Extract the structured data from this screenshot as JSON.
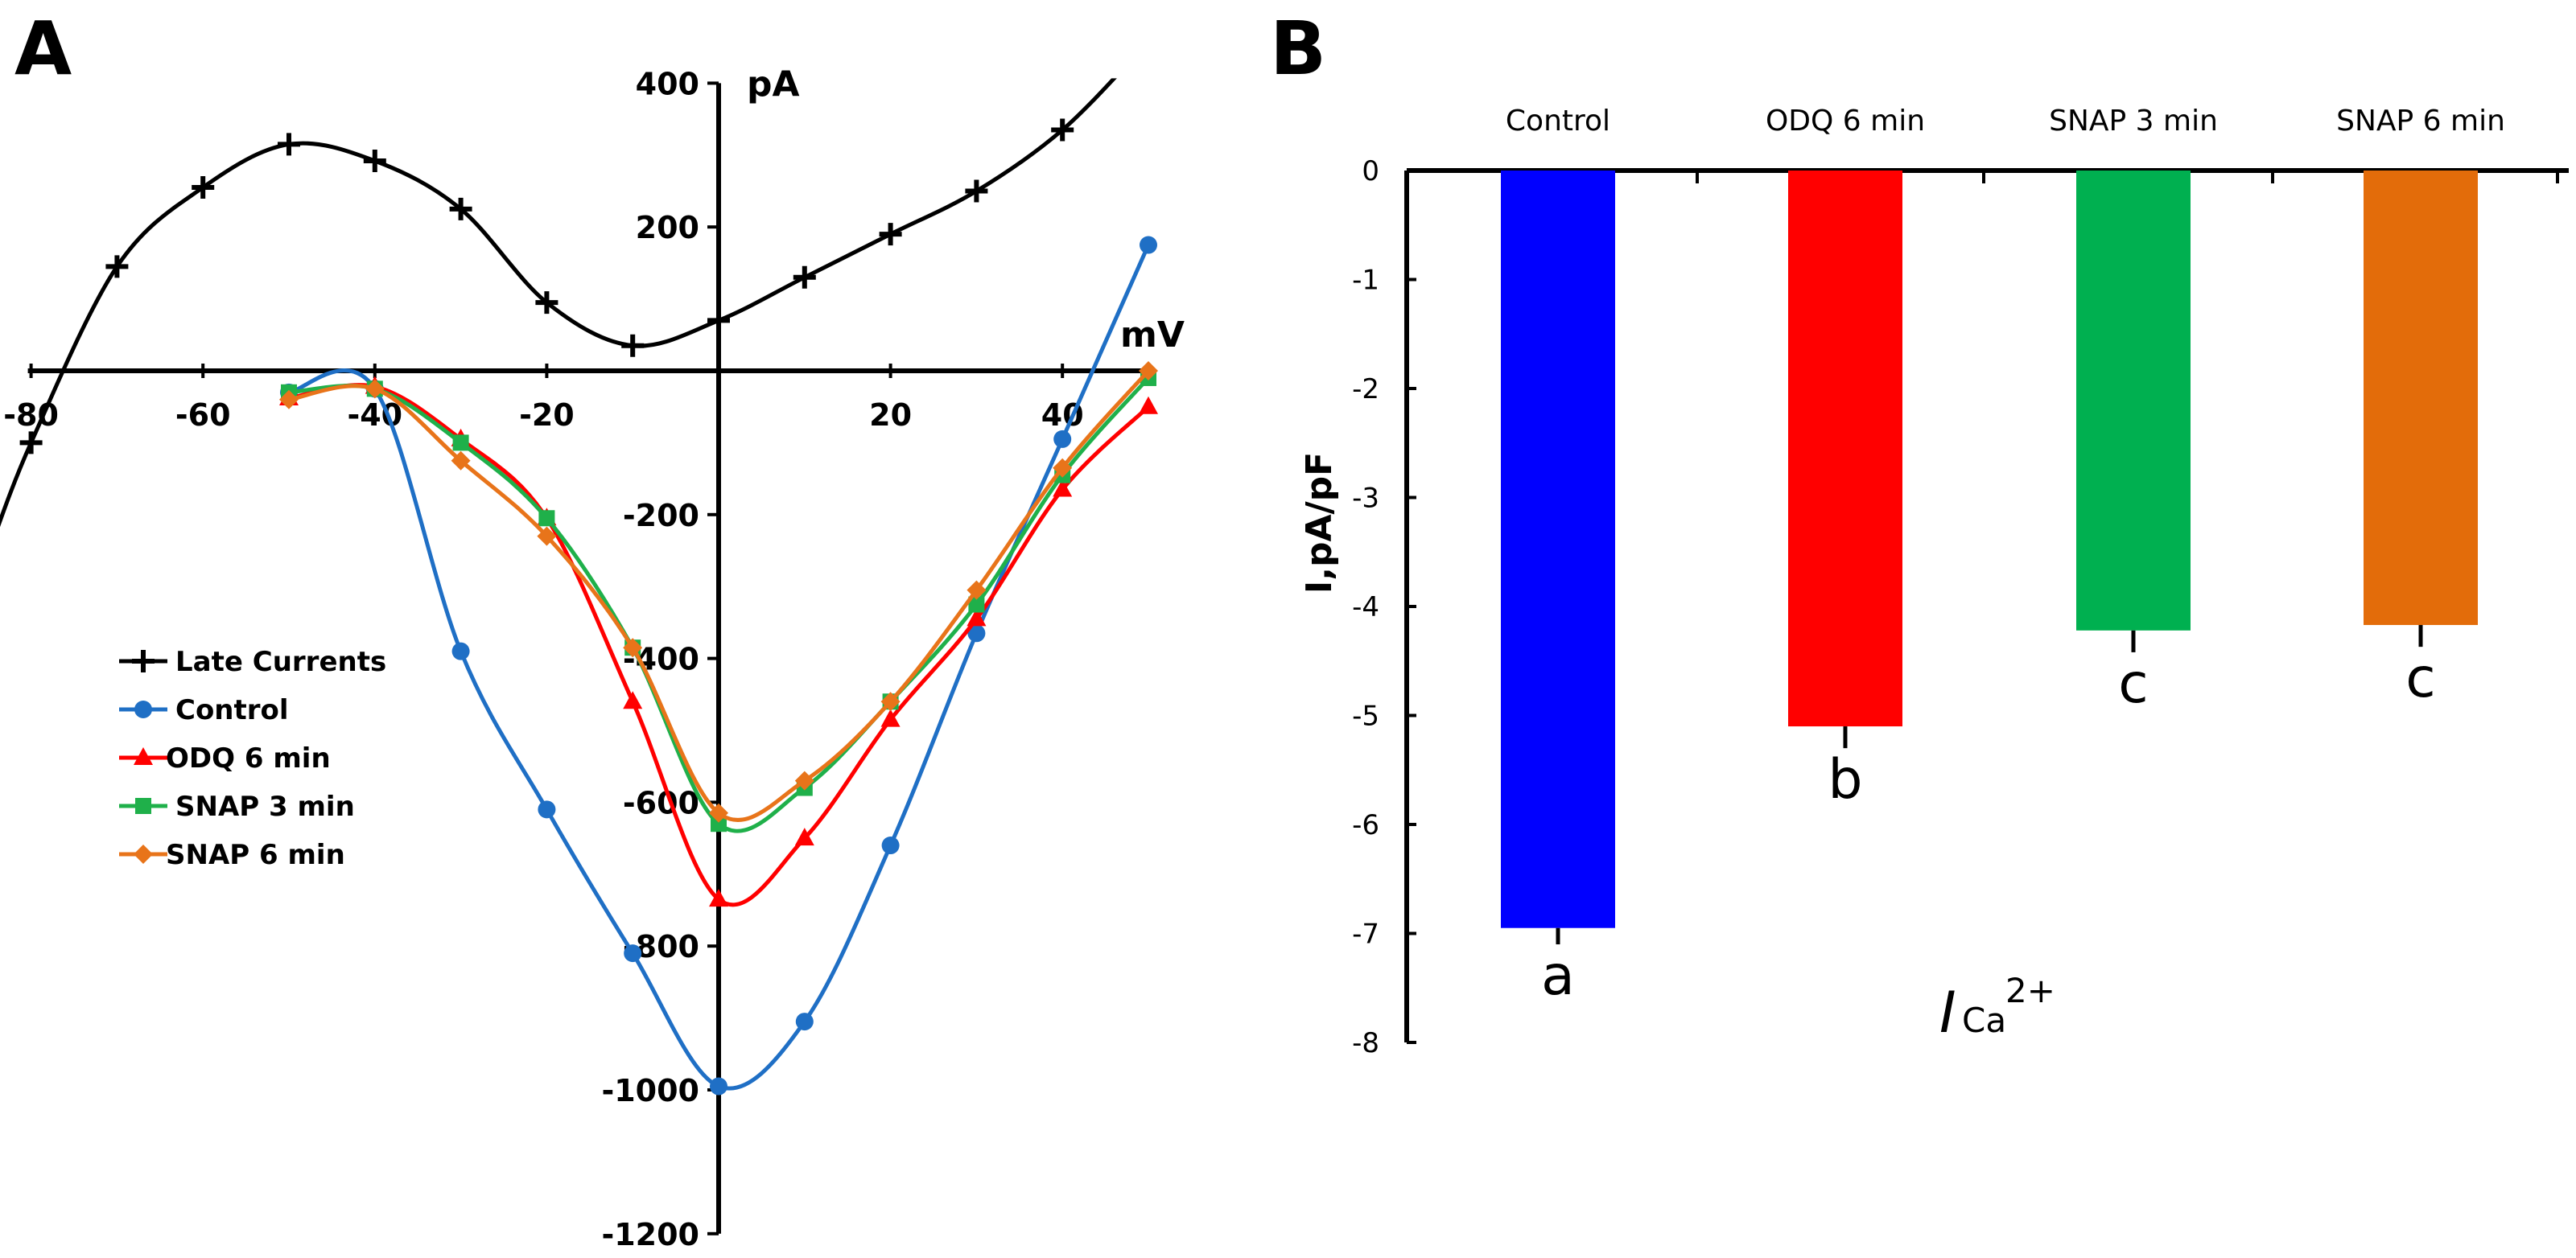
{
  "panels": {
    "a_label": "A",
    "b_label": "B"
  },
  "chart_data": [
    {
      "type": "line",
      "panel": "A",
      "xlabel": "mV",
      "ylabel": "pA",
      "xlim": [
        -80,
        50
      ],
      "ylim": [
        -1200,
        400
      ],
      "x_ticks": [
        -80,
        -60,
        -40,
        -20,
        20,
        40
      ],
      "y_ticks": [
        400,
        200,
        -200,
        -400,
        -600,
        -800,
        -1000,
        -1200
      ],
      "legend_position": "middle-left",
      "series": [
        {
          "name": "Late Currents",
          "color": "#000000",
          "marker": "plus",
          "x": [
            -80,
            -70,
            -60,
            -50,
            -40,
            -30,
            -20,
            -10,
            0,
            10,
            20,
            30,
            40
          ],
          "y": [
            -100,
            145,
            255,
            315,
            292,
            225,
            95,
            35,
            70,
            130,
            190,
            250,
            335
          ]
        },
        {
          "name": "Control",
          "color": "#1f6fc5",
          "marker": "circle",
          "x": [
            -50,
            -40,
            -30,
            -20,
            -10,
            0,
            10,
            20,
            30,
            40,
            50
          ],
          "y": [
            -30,
            -25,
            -390,
            -610,
            -810,
            -995,
            -905,
            -660,
            -365,
            -95,
            175
          ]
        },
        {
          "name": "ODQ 6 min",
          "color": "#ff0000",
          "marker": "triangle",
          "x": [
            -50,
            -40,
            -30,
            -20,
            -10,
            0,
            10,
            20,
            30,
            40,
            50
          ],
          "y": [
            -38,
            -22,
            -95,
            -205,
            -460,
            -735,
            -650,
            -485,
            -345,
            -165,
            -50
          ]
        },
        {
          "name": "SNAP 3 min",
          "color": "#1fb04a",
          "marker": "square",
          "x": [
            -50,
            -40,
            -30,
            -20,
            -10,
            0,
            10,
            20,
            30,
            40,
            50
          ],
          "y": [
            -30,
            -25,
            -100,
            -205,
            -385,
            -630,
            -580,
            -460,
            -325,
            -145,
            -10
          ]
        },
        {
          "name": "SNAP 6 min",
          "color": "#e8741a",
          "marker": "diamond",
          "x": [
            -50,
            -40,
            -30,
            -20,
            -10,
            0,
            10,
            20,
            30,
            40,
            50
          ],
          "y": [
            -40,
            -25,
            -125,
            -230,
            -385,
            -615,
            -570,
            -460,
            -305,
            -135,
            0
          ]
        }
      ]
    },
    {
      "type": "bar",
      "panel": "B",
      "title": "",
      "ylabel": "I,pA/pF",
      "xlabel_italic": "I",
      "xlabel_sub": "Ca",
      "xlabel_sup": "2+",
      "ylim": [
        -8,
        0
      ],
      "y_ticks": [
        "0",
        "-1",
        "-2",
        "-3",
        "-4",
        "-5",
        "-6",
        "-7",
        "-8"
      ],
      "categories": [
        "Control",
        "ODQ 6 min",
        "SNAP 3 min",
        "SNAP 6 min"
      ],
      "values": [
        -6.95,
        -5.1,
        -4.22,
        -4.17
      ],
      "errors": [
        0.15,
        0.2,
        0.2,
        0.2
      ],
      "significance": [
        "a",
        "b",
        "c",
        "c"
      ],
      "colors": [
        "#0000ff",
        "#ff0000",
        "#00b050",
        "#e36c0a"
      ]
    }
  ]
}
